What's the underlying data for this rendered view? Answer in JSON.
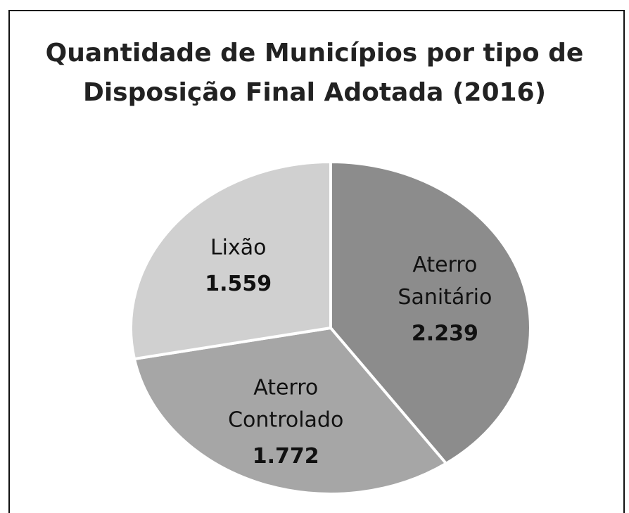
{
  "chart_data": {
    "type": "pie",
    "title": "Quantidade de Municípios por tipo de Disposição Final Adotada (2016)",
    "categories": [
      "Aterro Sanitário",
      "Aterro Controlado",
      "Lixão"
    ],
    "values": [
      2239,
      1772,
      1559
    ],
    "value_labels": [
      "2.239",
      "1.772",
      "1.559"
    ],
    "colors": [
      "#8c8c8c",
      "#a6a6a6",
      "#d0d0d0"
    ]
  }
}
